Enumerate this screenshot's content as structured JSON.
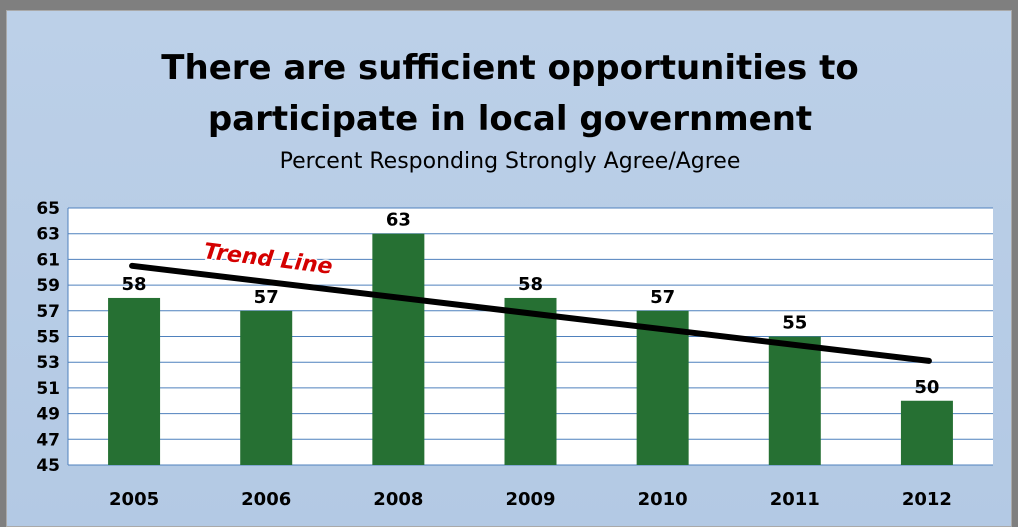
{
  "chart_data": {
    "type": "bar",
    "title_line1": "There are sufficient opportunities to",
    "title_line2": "participate in local government",
    "subtitle": "Percent Responding Strongly Agree/Agree",
    "categories": [
      "2005",
      "2006",
      "2008",
      "2009",
      "2010",
      "2011",
      "2012"
    ],
    "values": [
      58,
      57,
      63,
      58,
      57,
      55,
      50
    ],
    "data_labels": [
      "58",
      "57",
      "63",
      "58",
      "57",
      "55",
      "50"
    ],
    "ylim": [
      45,
      65
    ],
    "yticks": [
      45,
      47,
      49,
      51,
      53,
      55,
      57,
      59,
      61,
      63,
      65
    ],
    "grid": true,
    "bar_color": "#267033",
    "trend": {
      "label": "Trend Line",
      "start": 60.5,
      "end": 53.1,
      "color": "#000000"
    },
    "trend_label_color": "#d40000",
    "xlabel": "",
    "ylabel": ""
  }
}
